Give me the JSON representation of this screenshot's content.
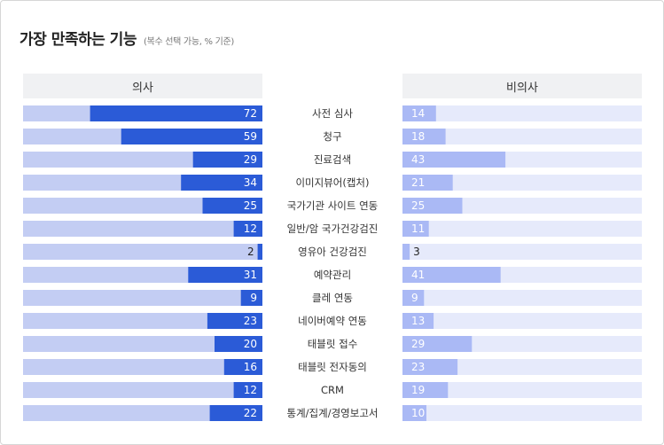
{
  "title": "가장 만족하는 기능",
  "subtitle": "(복수 선택 가능, % 기준)",
  "chart_data": {
    "type": "bar",
    "layout": "diverging-horizontal",
    "categories": [
      "사전 심사",
      "청구",
      "진료검색",
      "이미지뷰어(캡처)",
      "국가기관 사이트 연동",
      "일반/암 국가건강검진",
      "영유아 건강검진",
      "예약관리",
      "클레 연동",
      "네이버예약 연동",
      "태블릿 접수",
      "태블릿 전자동의",
      "CRM",
      "통계/집계/경영보고서"
    ],
    "series": [
      {
        "name": "의사",
        "color": "#2b5bd7",
        "track_color": "#c3cdf3",
        "values": [
          72,
          59,
          29,
          34,
          25,
          12,
          2,
          31,
          9,
          23,
          20,
          16,
          12,
          22
        ]
      },
      {
        "name": "비의사",
        "color": "#aab9f5",
        "track_color": "#e6eafb",
        "values": [
          14,
          18,
          43,
          21,
          25,
          11,
          3,
          41,
          9,
          13,
          29,
          23,
          19,
          10
        ]
      }
    ],
    "xlim": [
      0,
      100
    ],
    "grid": false
  }
}
